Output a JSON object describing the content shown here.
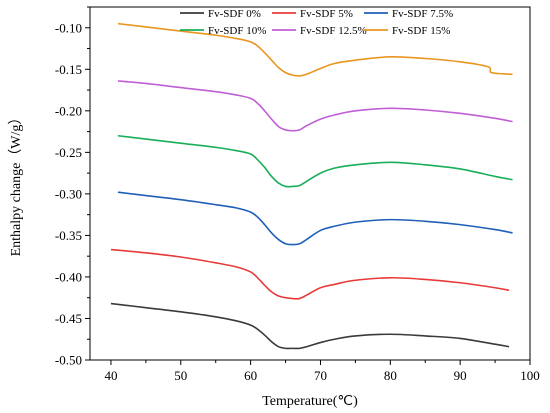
{
  "chart_data": {
    "type": "line",
    "xlabel": "Temperature(℃)",
    "ylabel": "Enthalpy change（W/g）",
    "xlim": [
      37,
      100
    ],
    "ylim": [
      -0.5,
      -0.075
    ],
    "xticks": [
      "40",
      "50",
      "60",
      "70",
      "80",
      "90",
      "100"
    ],
    "yticks": [
      "-0.10",
      "-0.15",
      "-0.20",
      "-0.25",
      "-0.30",
      "-0.35",
      "-0.40",
      "-0.45",
      "-0.50"
    ],
    "legend_position": "top",
    "series": [
      {
        "name": "Fv-SDF 0%",
        "color": "#3a3a3a",
        "x": [
          40,
          45,
          50,
          55,
          58,
          60,
          61,
          62,
          63,
          64,
          65,
          66,
          67,
          68,
          70,
          72,
          75,
          80,
          85,
          90,
          95,
          97
        ],
        "y": [
          -0.432,
          -0.437,
          -0.442,
          -0.448,
          -0.453,
          -0.458,
          -0.463,
          -0.47,
          -0.478,
          -0.484,
          -0.486,
          -0.486,
          -0.486,
          -0.484,
          -0.479,
          -0.475,
          -0.471,
          -0.469,
          -0.471,
          -0.474,
          -0.481,
          -0.484
        ]
      },
      {
        "name": "Fv-SDF 5%",
        "color": "#e83a3a",
        "x": [
          40,
          45,
          50,
          55,
          58,
          60,
          61,
          62,
          63,
          64,
          65,
          66,
          67,
          68,
          70,
          72,
          75,
          80,
          85,
          90,
          95,
          97
        ],
        "y": [
          -0.367,
          -0.371,
          -0.376,
          -0.383,
          -0.388,
          -0.394,
          -0.401,
          -0.41,
          -0.418,
          -0.423,
          -0.425,
          -0.426,
          -0.426,
          -0.422,
          -0.413,
          -0.409,
          -0.404,
          -0.401,
          -0.403,
          -0.407,
          -0.413,
          -0.416
        ]
      },
      {
        "name": "Fv-SDF 7.5%",
        "color": "#1f5fb8",
        "x": [
          41,
          45,
          50,
          55,
          58,
          60,
          61,
          62,
          63,
          64,
          65,
          66,
          67,
          68,
          70,
          72,
          75,
          80,
          85,
          90,
          95,
          97.5
        ],
        "y": [
          -0.298,
          -0.302,
          -0.307,
          -0.313,
          -0.317,
          -0.322,
          -0.328,
          -0.337,
          -0.347,
          -0.355,
          -0.36,
          -0.361,
          -0.36,
          -0.355,
          -0.344,
          -0.339,
          -0.334,
          -0.331,
          -0.333,
          -0.337,
          -0.343,
          -0.347
        ]
      },
      {
        "name": "Fv-SDF 10%",
        "color": "#1aae5a",
        "x": [
          41,
          45,
          50,
          55,
          58,
          60,
          61,
          62,
          63,
          64,
          65,
          66,
          67,
          68,
          70,
          72,
          75,
          80,
          85,
          90,
          95,
          97.5
        ],
        "y": [
          -0.23,
          -0.234,
          -0.239,
          -0.244,
          -0.248,
          -0.252,
          -0.259,
          -0.268,
          -0.279,
          -0.287,
          -0.291,
          -0.291,
          -0.29,
          -0.285,
          -0.275,
          -0.269,
          -0.265,
          -0.262,
          -0.265,
          -0.27,
          -0.279,
          -0.283
        ]
      },
      {
        "name": "Fv-SDF 12.5%",
        "color": "#c05fd6",
        "x": [
          41,
          45,
          50,
          55,
          58,
          60,
          61,
          62,
          63,
          64,
          65,
          66,
          67,
          68,
          70,
          72,
          75,
          80,
          85,
          90,
          95,
          97.5
        ],
        "y": [
          -0.164,
          -0.167,
          -0.172,
          -0.177,
          -0.181,
          -0.185,
          -0.191,
          -0.2,
          -0.21,
          -0.219,
          -0.223,
          -0.224,
          -0.223,
          -0.218,
          -0.21,
          -0.205,
          -0.2,
          -0.197,
          -0.199,
          -0.203,
          -0.209,
          -0.213
        ]
      },
      {
        "name": "Fv-SDF 15%",
        "color": "#e8961f",
        "x": [
          41,
          45,
          50,
          55,
          58,
          60,
          61,
          62,
          63,
          64,
          65,
          66,
          67,
          68,
          70,
          72,
          75,
          80,
          85,
          90,
          94,
          94.5,
          97.5
        ],
        "y": [
          -0.095,
          -0.099,
          -0.104,
          -0.109,
          -0.113,
          -0.117,
          -0.122,
          -0.13,
          -0.139,
          -0.148,
          -0.154,
          -0.157,
          -0.158,
          -0.156,
          -0.149,
          -0.143,
          -0.139,
          -0.135,
          -0.137,
          -0.141,
          -0.147,
          -0.154,
          -0.156
        ]
      }
    ]
  }
}
